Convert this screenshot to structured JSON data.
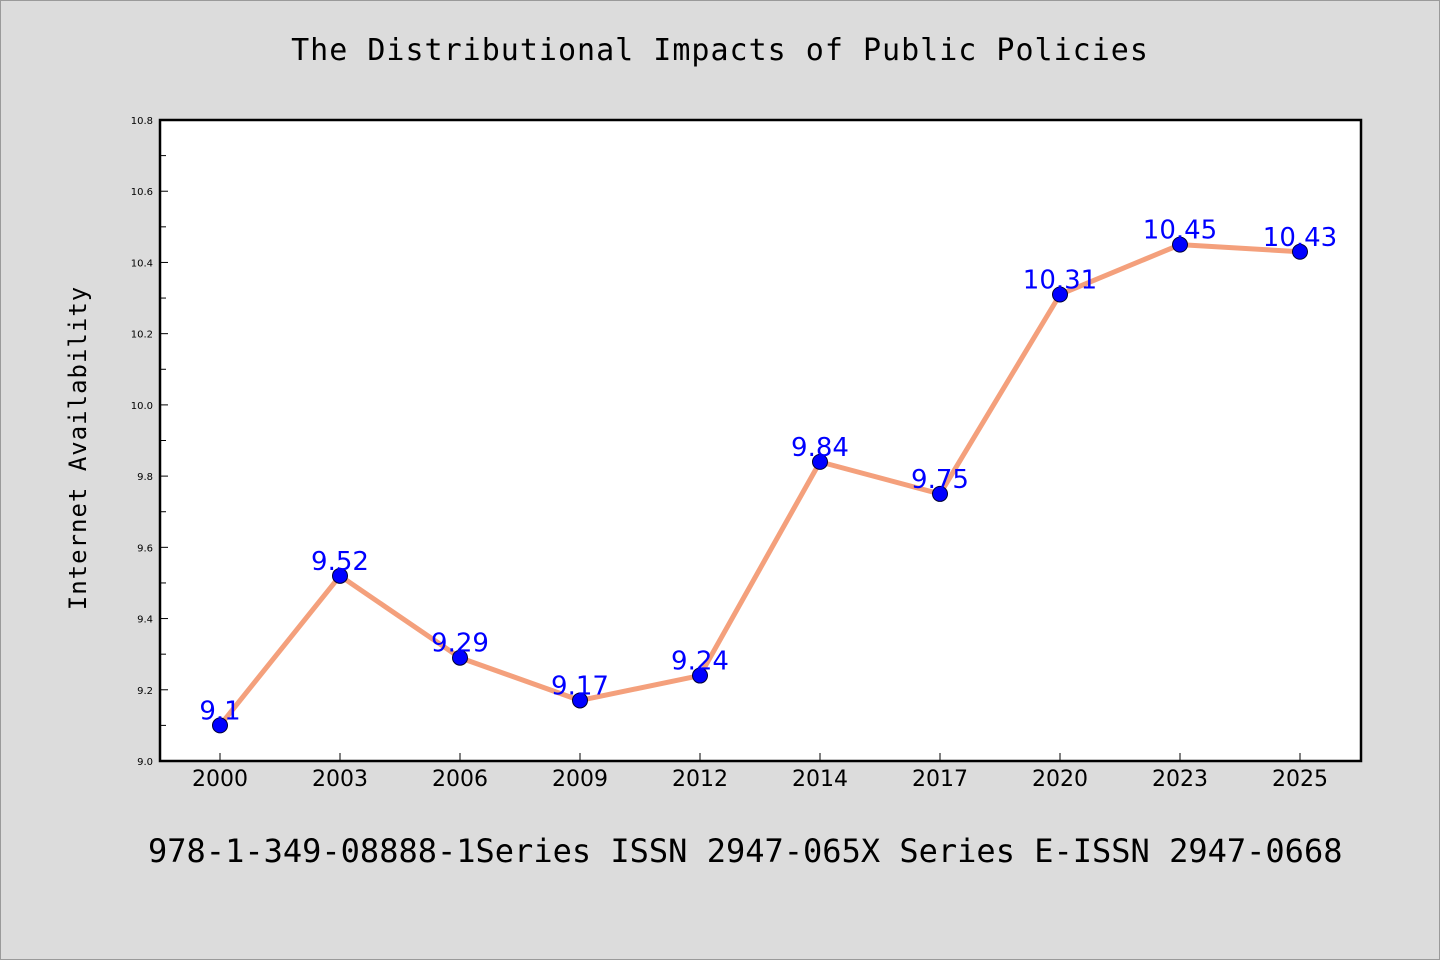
{
  "chart_data": {
    "type": "line",
    "title": "The Distributional Impacts of Public Policies",
    "xlabel": "",
    "ylabel": "Internet Availability",
    "categories": [
      "2000",
      "2003",
      "2006",
      "2009",
      "2012",
      "2014",
      "2017",
      "2020",
      "2023",
      "2025"
    ],
    "values": [
      9.1,
      9.52,
      9.29,
      9.17,
      9.24,
      9.84,
      9.75,
      10.31,
      10.45,
      10.43
    ],
    "data_labels": [
      "9.1",
      "9.52",
      "9.29",
      "9.17",
      "9.24",
      "9.84",
      "9.75",
      "10.31",
      "10.45",
      "10.43"
    ],
    "ylim": [
      9.0,
      10.8
    ],
    "yticks": [
      "9.0",
      "9.2",
      "9.4",
      "9.6",
      "9.8",
      "10.0",
      "10.2",
      "10.4",
      "10.6",
      "10.8"
    ],
    "grid": false,
    "line_color": "#f4a07c",
    "marker_color": "#0000ff",
    "label_color": "#0000ff"
  },
  "footer": {
    "text": "978-1-349-08888-1Series ISSN 2947-065X Series E-ISSN 2947-0668"
  }
}
